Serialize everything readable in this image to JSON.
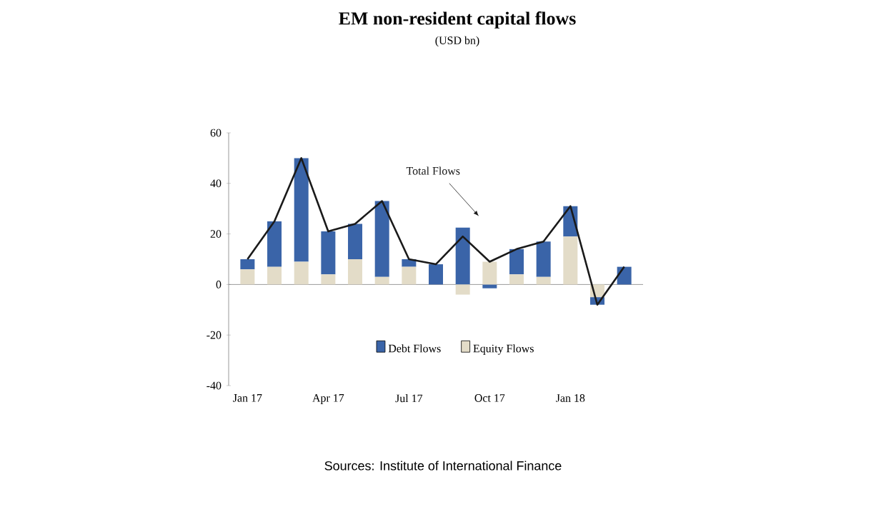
{
  "chart_data": {
    "type": "bar",
    "title": "EM non-resident capital flows",
    "subtitle": "(USD bn)",
    "categories": [
      "Jan 17",
      null,
      null,
      "Apr 17",
      null,
      null,
      "Jul 17",
      null,
      null,
      "Oct 17",
      null,
      null,
      "Jan 18",
      null,
      null
    ],
    "stacked": true,
    "series": [
      {
        "name": "Equity Flows",
        "color": "#e3dcc8",
        "values": [
          6,
          7,
          9,
          4,
          10,
          3,
          7,
          0,
          -4,
          9,
          4,
          3,
          19,
          -5,
          0
        ]
      },
      {
        "name": "Debt Flows",
        "color": "#3a64a8",
        "values": [
          4,
          18,
          41,
          17,
          14,
          30,
          3,
          8,
          22.5,
          -1.5,
          10,
          14,
          12,
          -3,
          7
        ]
      },
      {
        "name": "Total Flows",
        "type": "line",
        "color": "#1a1a1a",
        "values": [
          10,
          25,
          50,
          21,
          24,
          33,
          10,
          8,
          19,
          9,
          14,
          17,
          31,
          -8,
          7
        ]
      }
    ],
    "ylim": [
      -40,
      60
    ],
    "yticks": [
      -40,
      -20,
      0,
      20,
      40,
      60
    ],
    "legend": "bottom",
    "annotations": [
      "Sources: Institute of International Finance"
    ]
  }
}
